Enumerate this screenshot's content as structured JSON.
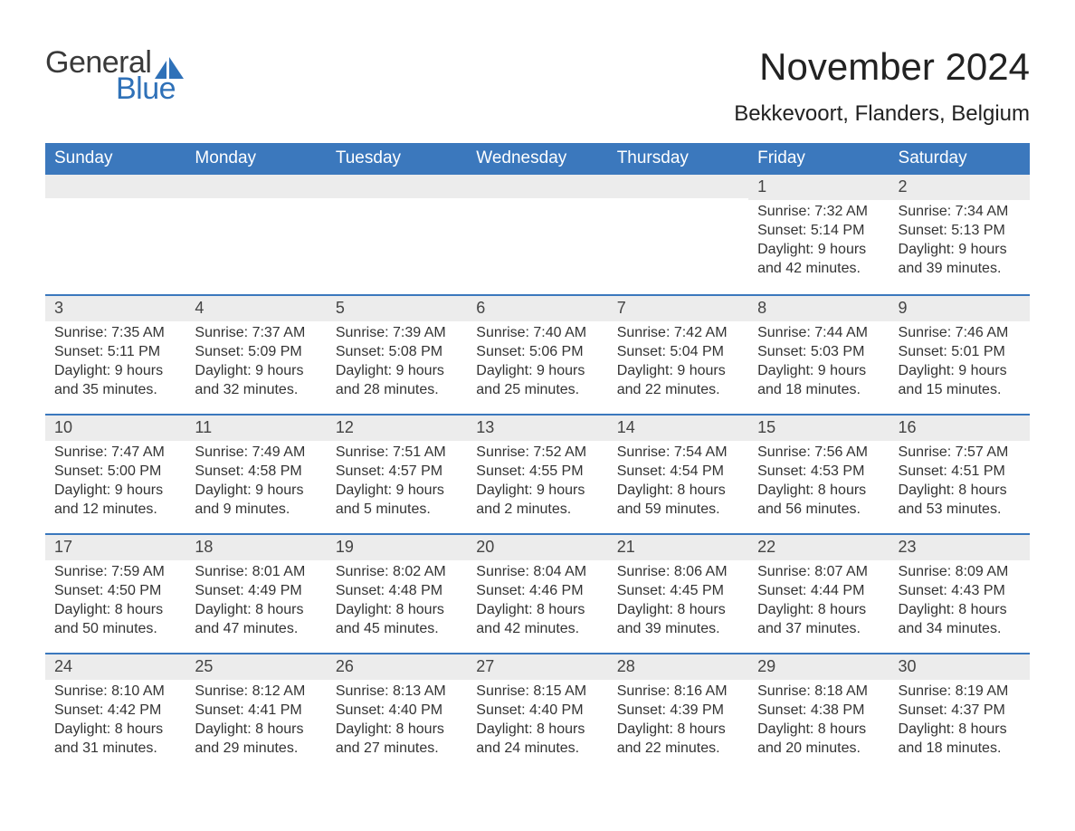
{
  "logo": {
    "general": "General",
    "blue": "Blue"
  },
  "title": {
    "month": "November 2024",
    "location": "Bekkevoort, Flanders, Belgium"
  },
  "colors": {
    "header_bg": "#3b78bd",
    "header_text": "#ffffff",
    "band_bg": "#ececec",
    "rule": "#3b78bd",
    "body_text": "#333333",
    "logo_blue": "#2f71b8",
    "logo_gray": "#3a3a3a",
    "page_bg": "#ffffff"
  },
  "weekdays": [
    "Sunday",
    "Monday",
    "Tuesday",
    "Wednesday",
    "Thursday",
    "Friday",
    "Saturday"
  ],
  "labels": {
    "sunrise": "Sunrise:",
    "sunset": "Sunset:",
    "daylight": "Daylight:"
  },
  "weeks": [
    [
      null,
      null,
      null,
      null,
      null,
      {
        "n": "1",
        "sunrise": "7:32 AM",
        "sunset": "5:14 PM",
        "daylight1": "9 hours",
        "daylight2": "and 42 minutes."
      },
      {
        "n": "2",
        "sunrise": "7:34 AM",
        "sunset": "5:13 PM",
        "daylight1": "9 hours",
        "daylight2": "and 39 minutes."
      }
    ],
    [
      {
        "n": "3",
        "sunrise": "7:35 AM",
        "sunset": "5:11 PM",
        "daylight1": "9 hours",
        "daylight2": "and 35 minutes."
      },
      {
        "n": "4",
        "sunrise": "7:37 AM",
        "sunset": "5:09 PM",
        "daylight1": "9 hours",
        "daylight2": "and 32 minutes."
      },
      {
        "n": "5",
        "sunrise": "7:39 AM",
        "sunset": "5:08 PM",
        "daylight1": "9 hours",
        "daylight2": "and 28 minutes."
      },
      {
        "n": "6",
        "sunrise": "7:40 AM",
        "sunset": "5:06 PM",
        "daylight1": "9 hours",
        "daylight2": "and 25 minutes."
      },
      {
        "n": "7",
        "sunrise": "7:42 AM",
        "sunset": "5:04 PM",
        "daylight1": "9 hours",
        "daylight2": "and 22 minutes."
      },
      {
        "n": "8",
        "sunrise": "7:44 AM",
        "sunset": "5:03 PM",
        "daylight1": "9 hours",
        "daylight2": "and 18 minutes."
      },
      {
        "n": "9",
        "sunrise": "7:46 AM",
        "sunset": "5:01 PM",
        "daylight1": "9 hours",
        "daylight2": "and 15 minutes."
      }
    ],
    [
      {
        "n": "10",
        "sunrise": "7:47 AM",
        "sunset": "5:00 PM",
        "daylight1": "9 hours",
        "daylight2": "and 12 minutes."
      },
      {
        "n": "11",
        "sunrise": "7:49 AM",
        "sunset": "4:58 PM",
        "daylight1": "9 hours",
        "daylight2": "and 9 minutes."
      },
      {
        "n": "12",
        "sunrise": "7:51 AM",
        "sunset": "4:57 PM",
        "daylight1": "9 hours",
        "daylight2": "and 5 minutes."
      },
      {
        "n": "13",
        "sunrise": "7:52 AM",
        "sunset": "4:55 PM",
        "daylight1": "9 hours",
        "daylight2": "and 2 minutes."
      },
      {
        "n": "14",
        "sunrise": "7:54 AM",
        "sunset": "4:54 PM",
        "daylight1": "8 hours",
        "daylight2": "and 59 minutes."
      },
      {
        "n": "15",
        "sunrise": "7:56 AM",
        "sunset": "4:53 PM",
        "daylight1": "8 hours",
        "daylight2": "and 56 minutes."
      },
      {
        "n": "16",
        "sunrise": "7:57 AM",
        "sunset": "4:51 PM",
        "daylight1": "8 hours",
        "daylight2": "and 53 minutes."
      }
    ],
    [
      {
        "n": "17",
        "sunrise": "7:59 AM",
        "sunset": "4:50 PM",
        "daylight1": "8 hours",
        "daylight2": "and 50 minutes."
      },
      {
        "n": "18",
        "sunrise": "8:01 AM",
        "sunset": "4:49 PM",
        "daylight1": "8 hours",
        "daylight2": "and 47 minutes."
      },
      {
        "n": "19",
        "sunrise": "8:02 AM",
        "sunset": "4:48 PM",
        "daylight1": "8 hours",
        "daylight2": "and 45 minutes."
      },
      {
        "n": "20",
        "sunrise": "8:04 AM",
        "sunset": "4:46 PM",
        "daylight1": "8 hours",
        "daylight2": "and 42 minutes."
      },
      {
        "n": "21",
        "sunrise": "8:06 AM",
        "sunset": "4:45 PM",
        "daylight1": "8 hours",
        "daylight2": "and 39 minutes."
      },
      {
        "n": "22",
        "sunrise": "8:07 AM",
        "sunset": "4:44 PM",
        "daylight1": "8 hours",
        "daylight2": "and 37 minutes."
      },
      {
        "n": "23",
        "sunrise": "8:09 AM",
        "sunset": "4:43 PM",
        "daylight1": "8 hours",
        "daylight2": "and 34 minutes."
      }
    ],
    [
      {
        "n": "24",
        "sunrise": "8:10 AM",
        "sunset": "4:42 PM",
        "daylight1": "8 hours",
        "daylight2": "and 31 minutes."
      },
      {
        "n": "25",
        "sunrise": "8:12 AM",
        "sunset": "4:41 PM",
        "daylight1": "8 hours",
        "daylight2": "and 29 minutes."
      },
      {
        "n": "26",
        "sunrise": "8:13 AM",
        "sunset": "4:40 PM",
        "daylight1": "8 hours",
        "daylight2": "and 27 minutes."
      },
      {
        "n": "27",
        "sunrise": "8:15 AM",
        "sunset": "4:40 PM",
        "daylight1": "8 hours",
        "daylight2": "and 24 minutes."
      },
      {
        "n": "28",
        "sunrise": "8:16 AM",
        "sunset": "4:39 PM",
        "daylight1": "8 hours",
        "daylight2": "and 22 minutes."
      },
      {
        "n": "29",
        "sunrise": "8:18 AM",
        "sunset": "4:38 PM",
        "daylight1": "8 hours",
        "daylight2": "and 20 minutes."
      },
      {
        "n": "30",
        "sunrise": "8:19 AM",
        "sunset": "4:37 PM",
        "daylight1": "8 hours",
        "daylight2": "and 18 minutes."
      }
    ]
  ]
}
